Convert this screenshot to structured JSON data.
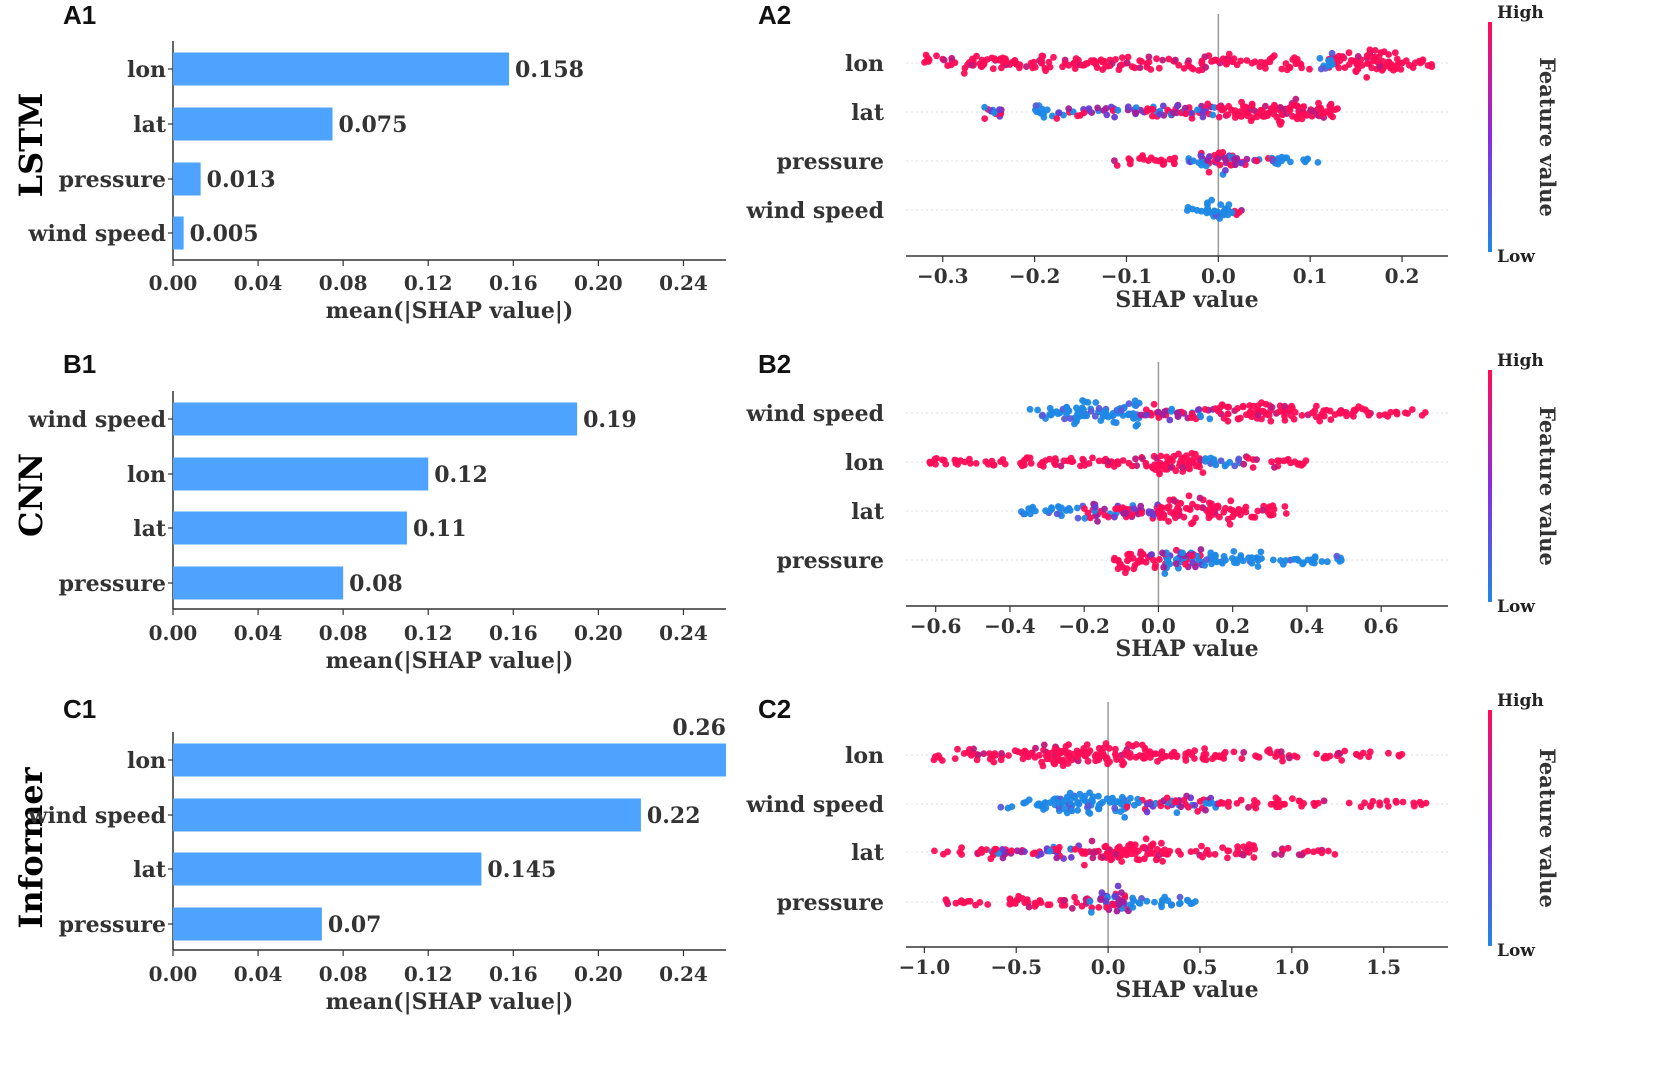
{
  "colors": {
    "bar": "#4da3ff",
    "high": "#ff0d57",
    "low": "#1e88e5",
    "axis": "#333333",
    "zero_line": "#999999"
  },
  "chart_data": [
    {
      "id": "A1",
      "type": "bar",
      "orientation": "horizontal",
      "row_label": "LSTM",
      "categories": [
        "lon",
        "lat",
        "pressure",
        "wind speed"
      ],
      "values": [
        0.158,
        0.075,
        0.013,
        0.005
      ],
      "value_labels": [
        "0.158",
        "0.075",
        "0.013",
        "0.005"
      ],
      "xlim": [
        0,
        0.26
      ],
      "xticks": [
        0.0,
        0.04,
        0.08,
        0.12,
        0.16,
        0.2,
        0.24
      ],
      "xtick_labels": [
        "0.00",
        "0.04",
        "0.08",
        "0.12",
        "0.16",
        "0.20",
        "0.24"
      ],
      "xlabel": "mean(|SHAP value|)"
    },
    {
      "id": "A2",
      "type": "scatter",
      "subtype": "shap-beeswarm",
      "features": [
        "lon",
        "lat",
        "pressure",
        "wind speed"
      ],
      "xlim": [
        -0.34,
        0.25
      ],
      "xticks": [
        -0.3,
        -0.2,
        -0.1,
        0.0,
        0.1,
        0.2
      ],
      "xtick_labels": [
        "−0.3",
        "−0.2",
        "−0.1",
        "0.0",
        "0.1",
        "0.2"
      ],
      "xlabel": "SHAP value",
      "distributions": [
        {
          "clusters": [
            [
              -0.32,
              -0.18,
              0.6,
              "high"
            ],
            [
              -0.18,
              0.1,
              0.5,
              "high"
            ],
            [
              0.12,
              0.2,
              1.0,
              "high"
            ],
            [
              0.11,
              0.125,
              0.6,
              "low"
            ],
            [
              0.2,
              0.235,
              0.3,
              "high"
            ]
          ]
        },
        {
          "clusters": [
            [
              -0.255,
              -0.235,
              0.5,
              "mix"
            ],
            [
              -0.2,
              -0.18,
              0.5,
              "low"
            ],
            [
              -0.18,
              -0.09,
              0.3,
              "mix"
            ],
            [
              -0.1,
              0.0,
              0.6,
              "mix"
            ],
            [
              0.0,
              0.13,
              1.0,
              "high"
            ]
          ]
        },
        {
          "clusters": [
            [
              -0.115,
              -0.04,
              0.3,
              "high"
            ],
            [
              -0.04,
              0.0,
              0.3,
              "mix"
            ],
            [
              -0.02,
              0.02,
              1.0,
              "mix"
            ],
            [
              0.02,
              0.06,
              0.3,
              "mix"
            ],
            [
              0.06,
              0.11,
              0.3,
              "low"
            ]
          ]
        },
        {
          "clusters": [
            [
              -0.045,
              -0.01,
              0.2,
              "low"
            ],
            [
              -0.012,
              0.012,
              1.0,
              "low"
            ],
            [
              0.01,
              0.028,
              0.3,
              "mix"
            ]
          ]
        }
      ],
      "colorbar": {
        "high": "High",
        "low": "Low",
        "title": "Feature value"
      }
    },
    {
      "id": "B1",
      "type": "bar",
      "orientation": "horizontal",
      "row_label": "CNN",
      "categories": [
        "wind speed",
        "lon",
        "lat",
        "pressure"
      ],
      "values": [
        0.19,
        0.12,
        0.11,
        0.08
      ],
      "value_labels": [
        "0.19",
        "0.12",
        "0.11",
        "0.08"
      ],
      "xlim": [
        0,
        0.26
      ],
      "xticks": [
        0.0,
        0.04,
        0.08,
        0.12,
        0.16,
        0.2,
        0.24
      ],
      "xtick_labels": [
        "0.00",
        "0.04",
        "0.08",
        "0.12",
        "0.16",
        "0.20",
        "0.24"
      ],
      "xlabel": "mean(|SHAP value|)"
    },
    {
      "id": "B2",
      "type": "scatter",
      "subtype": "shap-beeswarm",
      "features": [
        "wind speed",
        "lon",
        "lat",
        "pressure"
      ],
      "xlim": [
        -0.68,
        0.78
      ],
      "xticks": [
        -0.6,
        -0.4,
        -0.2,
        0.0,
        0.2,
        0.4,
        0.6
      ],
      "xtick_labels": [
        "−0.6",
        "−0.4",
        "−0.2",
        "0.0",
        "0.2",
        "0.4",
        "0.6"
      ],
      "xlabel": "SHAP value",
      "distributions": [
        {
          "clusters": [
            [
              -0.37,
              -0.25,
              0.3,
              "low"
            ],
            [
              -0.25,
              -0.05,
              1.0,
              "low"
            ],
            [
              -0.05,
              0.15,
              0.6,
              "mix"
            ],
            [
              0.15,
              0.45,
              0.7,
              "high"
            ],
            [
              0.45,
              0.72,
              0.35,
              "high"
            ]
          ]
        },
        {
          "clusters": [
            [
              -0.62,
              -0.45,
              0.3,
              "high"
            ],
            [
              -0.45,
              -0.05,
              0.4,
              "high"
            ],
            [
              -0.05,
              0.12,
              1.0,
              "high"
            ],
            [
              0.12,
              0.22,
              0.4,
              "low"
            ],
            [
              0.22,
              0.4,
              0.3,
              "high"
            ]
          ]
        },
        {
          "clusters": [
            [
              -0.37,
              -0.2,
              0.4,
              "low"
            ],
            [
              -0.2,
              0.0,
              0.7,
              "mix"
            ],
            [
              0.0,
              0.2,
              1.0,
              "high"
            ],
            [
              0.2,
              0.35,
              0.4,
              "high"
            ]
          ]
        },
        {
          "clusters": [
            [
              -0.12,
              -0.02,
              0.8,
              "high"
            ],
            [
              -0.02,
              0.12,
              1.0,
              "mix"
            ],
            [
              0.12,
              0.3,
              0.5,
              "low"
            ],
            [
              0.3,
              0.5,
              0.3,
              "low"
            ]
          ]
        }
      ],
      "colorbar": {
        "high": "High",
        "low": "Low",
        "title": "Feature value"
      }
    },
    {
      "id": "C1",
      "type": "bar",
      "orientation": "horizontal",
      "row_label": "Informer",
      "categories": [
        "lon",
        "wind speed",
        "lat",
        "pressure"
      ],
      "values": [
        0.26,
        0.22,
        0.145,
        0.07
      ],
      "value_labels": [
        "0.26",
        "0.22",
        "0.145",
        "0.07"
      ],
      "xlim": [
        0,
        0.26
      ],
      "xticks": [
        0.0,
        0.04,
        0.08,
        0.12,
        0.16,
        0.2,
        0.24
      ],
      "xtick_labels": [
        "0.00",
        "0.04",
        "0.08",
        "0.12",
        "0.16",
        "0.20",
        "0.24"
      ],
      "xlabel": "mean(|SHAP value|)"
    },
    {
      "id": "C2",
      "type": "scatter",
      "subtype": "shap-beeswarm",
      "features": [
        "lon",
        "wind speed",
        "lat",
        "pressure"
      ],
      "xlim": [
        -1.1,
        1.85
      ],
      "xticks": [
        -1.0,
        -0.5,
        0.0,
        0.5,
        1.0,
        1.5
      ],
      "xtick_labels": [
        "−1.0",
        "−0.5",
        "0.0",
        "0.5",
        "1.0",
        "1.5"
      ],
      "xlabel": "SHAP value",
      "distributions": [
        {
          "clusters": [
            [
              -0.95,
              -0.4,
              0.4,
              "high"
            ],
            [
              -0.4,
              0.2,
              1.0,
              "high"
            ],
            [
              0.2,
              0.6,
              0.5,
              "high"
            ],
            [
              0.6,
              1.3,
              0.3,
              "high"
            ],
            [
              1.3,
              1.6,
              0.15,
              "high"
            ]
          ]
        },
        {
          "clusters": [
            [
              -0.6,
              -0.3,
              0.3,
              "low"
            ],
            [
              -0.3,
              0.1,
              1.0,
              "low"
            ],
            [
              0.1,
              0.6,
              0.6,
              "mix"
            ],
            [
              0.6,
              1.2,
              0.3,
              "high"
            ],
            [
              1.3,
              1.75,
              0.2,
              "high"
            ]
          ]
        },
        {
          "clusters": [
            [
              -0.95,
              -0.65,
              0.2,
              "high"
            ],
            [
              -0.65,
              -0.15,
              0.5,
              "mix"
            ],
            [
              -0.15,
              0.3,
              1.0,
              "high"
            ],
            [
              0.3,
              0.8,
              0.4,
              "high"
            ],
            [
              0.9,
              1.25,
              0.2,
              "high"
            ]
          ]
        },
        {
          "clusters": [
            [
              -0.9,
              -0.6,
              0.2,
              "high"
            ],
            [
              -0.6,
              -0.1,
              0.4,
              "high"
            ],
            [
              -0.1,
              0.12,
              1.0,
              "mix"
            ],
            [
              0.12,
              0.5,
              0.35,
              "low"
            ]
          ]
        }
      ],
      "colorbar": {
        "high": "High",
        "low": "Low",
        "title": "Feature value"
      }
    }
  ]
}
